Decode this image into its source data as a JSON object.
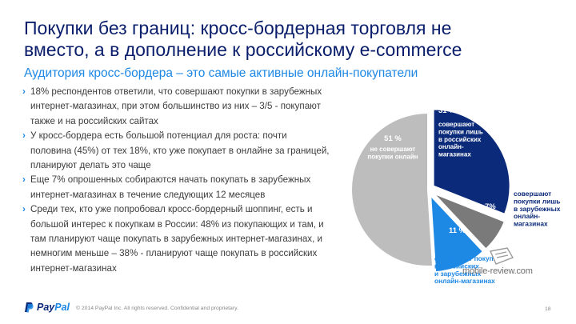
{
  "title": {
    "line1": "Покупки без границ: кросс-бордерная торговля не",
    "line2": "вместо, а в дополнение к российскому e-commerce"
  },
  "subtitle": "Аудитория кросс-бордера – это самые активные онлайн-покупатели",
  "bullets": [
    {
      "lines": [
        "18% респондентов ответили, что совершают покупки в зарубежных",
        "интернет-магазинах, при этом большинство из них – 3/5 - покупают",
        "также и на российских сайтах"
      ]
    },
    {
      "lines": [
        "У кросс-бордера есть большой потенциал для роста:  почти",
        "половина (45%) от тех 18%, кто уже покупает в онлайне за границей,",
        "планируют делать это чаще"
      ]
    },
    {
      "lines": [
        "Еще 7% опрошенных собираются начать покупать в зарубежных",
        "интернет-магазинах в течение следующих 12 месяцев"
      ]
    },
    {
      "lines": [
        "Среди тех, кто уже попробовал кросс-бордерный шоппинг, есть и",
        "большой интерес к покупкам в России: 48% из покупающих и там, и",
        "там планируют чаще покупать в зарубежных интернет-магазинах, и",
        "немногим меньше – 38% - планируют чаще покупать в российских",
        "интернет-магазинах"
      ]
    }
  ],
  "chart_data": {
    "type": "pie",
    "unit": "%",
    "slices": [
      {
        "value": 31,
        "value_label": "31 %",
        "label_lines": [
          "совершают",
          "покупки лишь",
          "в российских",
          "онлайн-",
          "магазинах"
        ],
        "color": "#0b2a7a",
        "exploded": true
      },
      {
        "value": 7,
        "value_label": "7%",
        "label_lines": [
          "совершают",
          "покупки лишь",
          "в зарубежных",
          "онлайн-",
          "магазинах"
        ],
        "color": "#7a7a7a",
        "exploded": true
      },
      {
        "value": 11,
        "value_label": "11 %",
        "label_lines": [
          "совершают покупки",
          "в российских",
          "и зарубежных",
          "онлайн-магазинах"
        ],
        "color": "#1e88e5",
        "exploded": true
      },
      {
        "value": 51,
        "value_label": "51 %",
        "label_lines": [
          "не совершают",
          "покупки онлайн"
        ],
        "color": "#bdbdbd",
        "exploded": false
      }
    ]
  },
  "footer": {
    "logo_pay": "Pay",
    "logo_pal": "Pal",
    "copyright": "© 2014 PayPal Inc. All rights reserved. Confidential and proprietary.",
    "page_number": "18"
  },
  "watermark": "mobile-review.com"
}
